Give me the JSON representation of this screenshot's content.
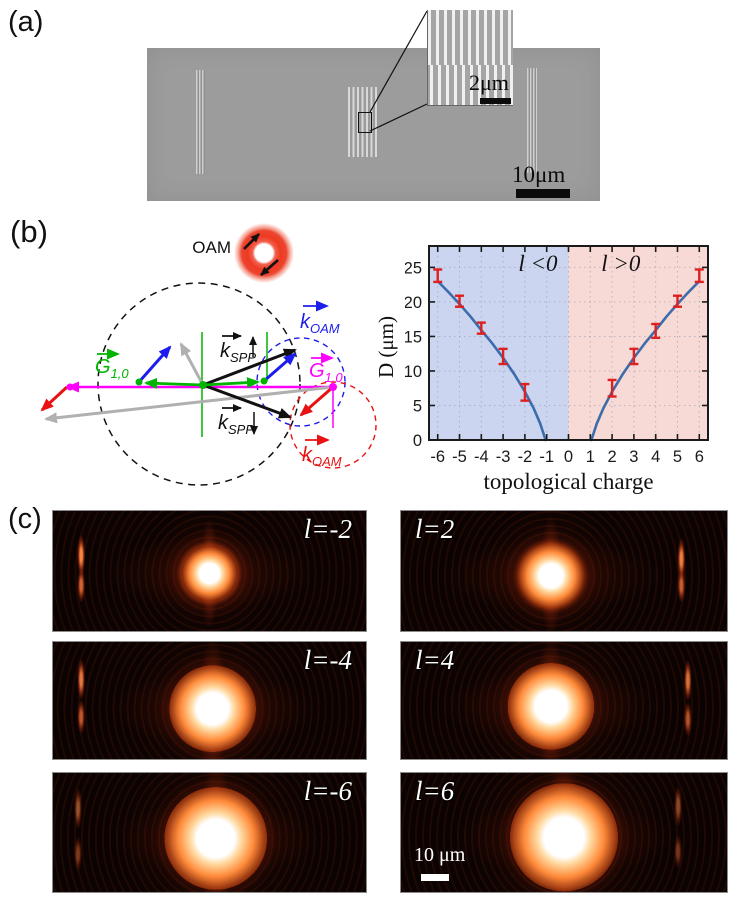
{
  "panel_a": {
    "label": "(a)",
    "inset_scale_label": "2μm",
    "main_scale_label": "10μm"
  },
  "panel_b": {
    "label": "(b)",
    "oam_label": "OAM",
    "labels": {
      "g_left": {
        "base": "G",
        "sub": "1,0"
      },
      "g_right": {
        "base": "G",
        "sub": "1,0"
      },
      "kspp_up": {
        "base": "k",
        "sub": "SPP"
      },
      "kspp_down": {
        "base": "k",
        "sub": "SPP"
      },
      "koam_top": {
        "base": "k",
        "sub": "OAM"
      },
      "koam_bottom": {
        "base": "k",
        "sub": "OAM"
      }
    },
    "colors": {
      "green": "#00b400",
      "magenta": "#ff00ff",
      "blue": "#1d1dee",
      "red": "#e81212",
      "gray": "#b0b0b0",
      "black": "#111111"
    }
  },
  "chart_data": {
    "type": "line",
    "xlabel": "topological charge",
    "ylabel": "D (μm)",
    "xlim": [
      -6.4,
      6.4
    ],
    "ylim": [
      0,
      28.1
    ],
    "x_ticks": [
      -6,
      -5,
      -4,
      -3,
      -2,
      -1,
      0,
      1,
      2,
      3,
      4,
      5,
      6
    ],
    "y_ticks": [
      0,
      5,
      10,
      15,
      20,
      25
    ],
    "grid": "dotted",
    "regions": [
      {
        "label": "l <0",
        "range": [
          -6.4,
          0
        ],
        "color": "#ccd5ef",
        "label_x": -2.3,
        "label_y": 24.5
      },
      {
        "label": "l >0",
        "range": [
          0,
          6.4
        ],
        "color": "#f7d9d5",
        "label_x": 1.5,
        "label_y": 24.5
      }
    ],
    "curve_color": "#3c6cab",
    "errorbar_color": "#dd2121",
    "series": [
      {
        "name": "l<0 branch",
        "x": [
          -6,
          -5.5,
          -5,
          -4.5,
          -4,
          -3.5,
          -3,
          -2.5,
          -2,
          -1.6,
          -1.3,
          -1.05
        ],
        "y": [
          23,
          21.4,
          19.7,
          17.9,
          15.9,
          14.0,
          11.9,
          9.6,
          7.0,
          4.6,
          2.4,
          0
        ]
      },
      {
        "name": "l>0 branch",
        "x": [
          1.05,
          1.3,
          1.6,
          2,
          2.5,
          3,
          3.5,
          4,
          4.5,
          5,
          5.5,
          6
        ],
        "y": [
          0,
          2.4,
          4.6,
          7.0,
          9.6,
          11.9,
          14.0,
          15.9,
          17.9,
          19.7,
          21.4,
          23
        ]
      }
    ],
    "error_bars": {
      "x": [
        -6,
        -5,
        -4,
        -3,
        -2,
        2,
        3,
        4,
        5,
        6
      ],
      "y": [
        23.8,
        20.1,
        16.2,
        12.1,
        6.9,
        7.5,
        12.1,
        15.8,
        20.1,
        23.8
      ],
      "yerr": [
        0.9,
        0.8,
        0.8,
        1.1,
        1.2,
        1.2,
        1.1,
        1.0,
        0.8,
        0.9
      ]
    }
  },
  "panel_c": {
    "label": "(c)",
    "scalebar_label": "10 μm",
    "images": [
      {
        "label": "l=-2",
        "label_side": "right",
        "spot_x": 50,
        "spot_y": 52,
        "core": 10,
        "halo": 44,
        "streak_side": "left",
        "streak_x": 9,
        "streak_y1": 37,
        "streak_y2": 62,
        "streak_strength": 0.95
      },
      {
        "label": "l=2",
        "label_side": "left",
        "spot_x": 46,
        "spot_y": 54,
        "core": 12,
        "halo": 48,
        "streak_side": "right",
        "streak_x": 86,
        "streak_y1": 40,
        "streak_y2": 62,
        "streak_strength": 0.9
      },
      {
        "label": "l=-4",
        "label_side": "right",
        "spot_x": 51,
        "spot_y": 57,
        "core": 16,
        "halo": 56,
        "streak_side": "left",
        "streak_x": 9,
        "streak_y1": 32,
        "streak_y2": 64,
        "streak_strength": 0.85
      },
      {
        "label": "l=4",
        "label_side": "left",
        "spot_x": 46,
        "spot_y": 55,
        "core": 16,
        "halo": 56,
        "streak_side": "right",
        "streak_x": 88,
        "streak_y1": 33,
        "streak_y2": 66,
        "streak_strength": 0.8
      },
      {
        "label": "l=-6",
        "label_side": "right",
        "spot_x": 52,
        "spot_y": 55,
        "core": 19,
        "halo": 63,
        "streak_side": "left",
        "streak_x": 8,
        "streak_y1": 30,
        "streak_y2": 68,
        "streak_strength": 0.55
      },
      {
        "label": "l=6",
        "label_side": "left",
        "spot_x": 50,
        "spot_y": 54,
        "core": 20,
        "halo": 65,
        "streak_side": "right",
        "streak_x": 85,
        "streak_y1": 28,
        "streak_y2": 66,
        "streak_strength": 0.5,
        "has_scalebar": true
      }
    ]
  }
}
